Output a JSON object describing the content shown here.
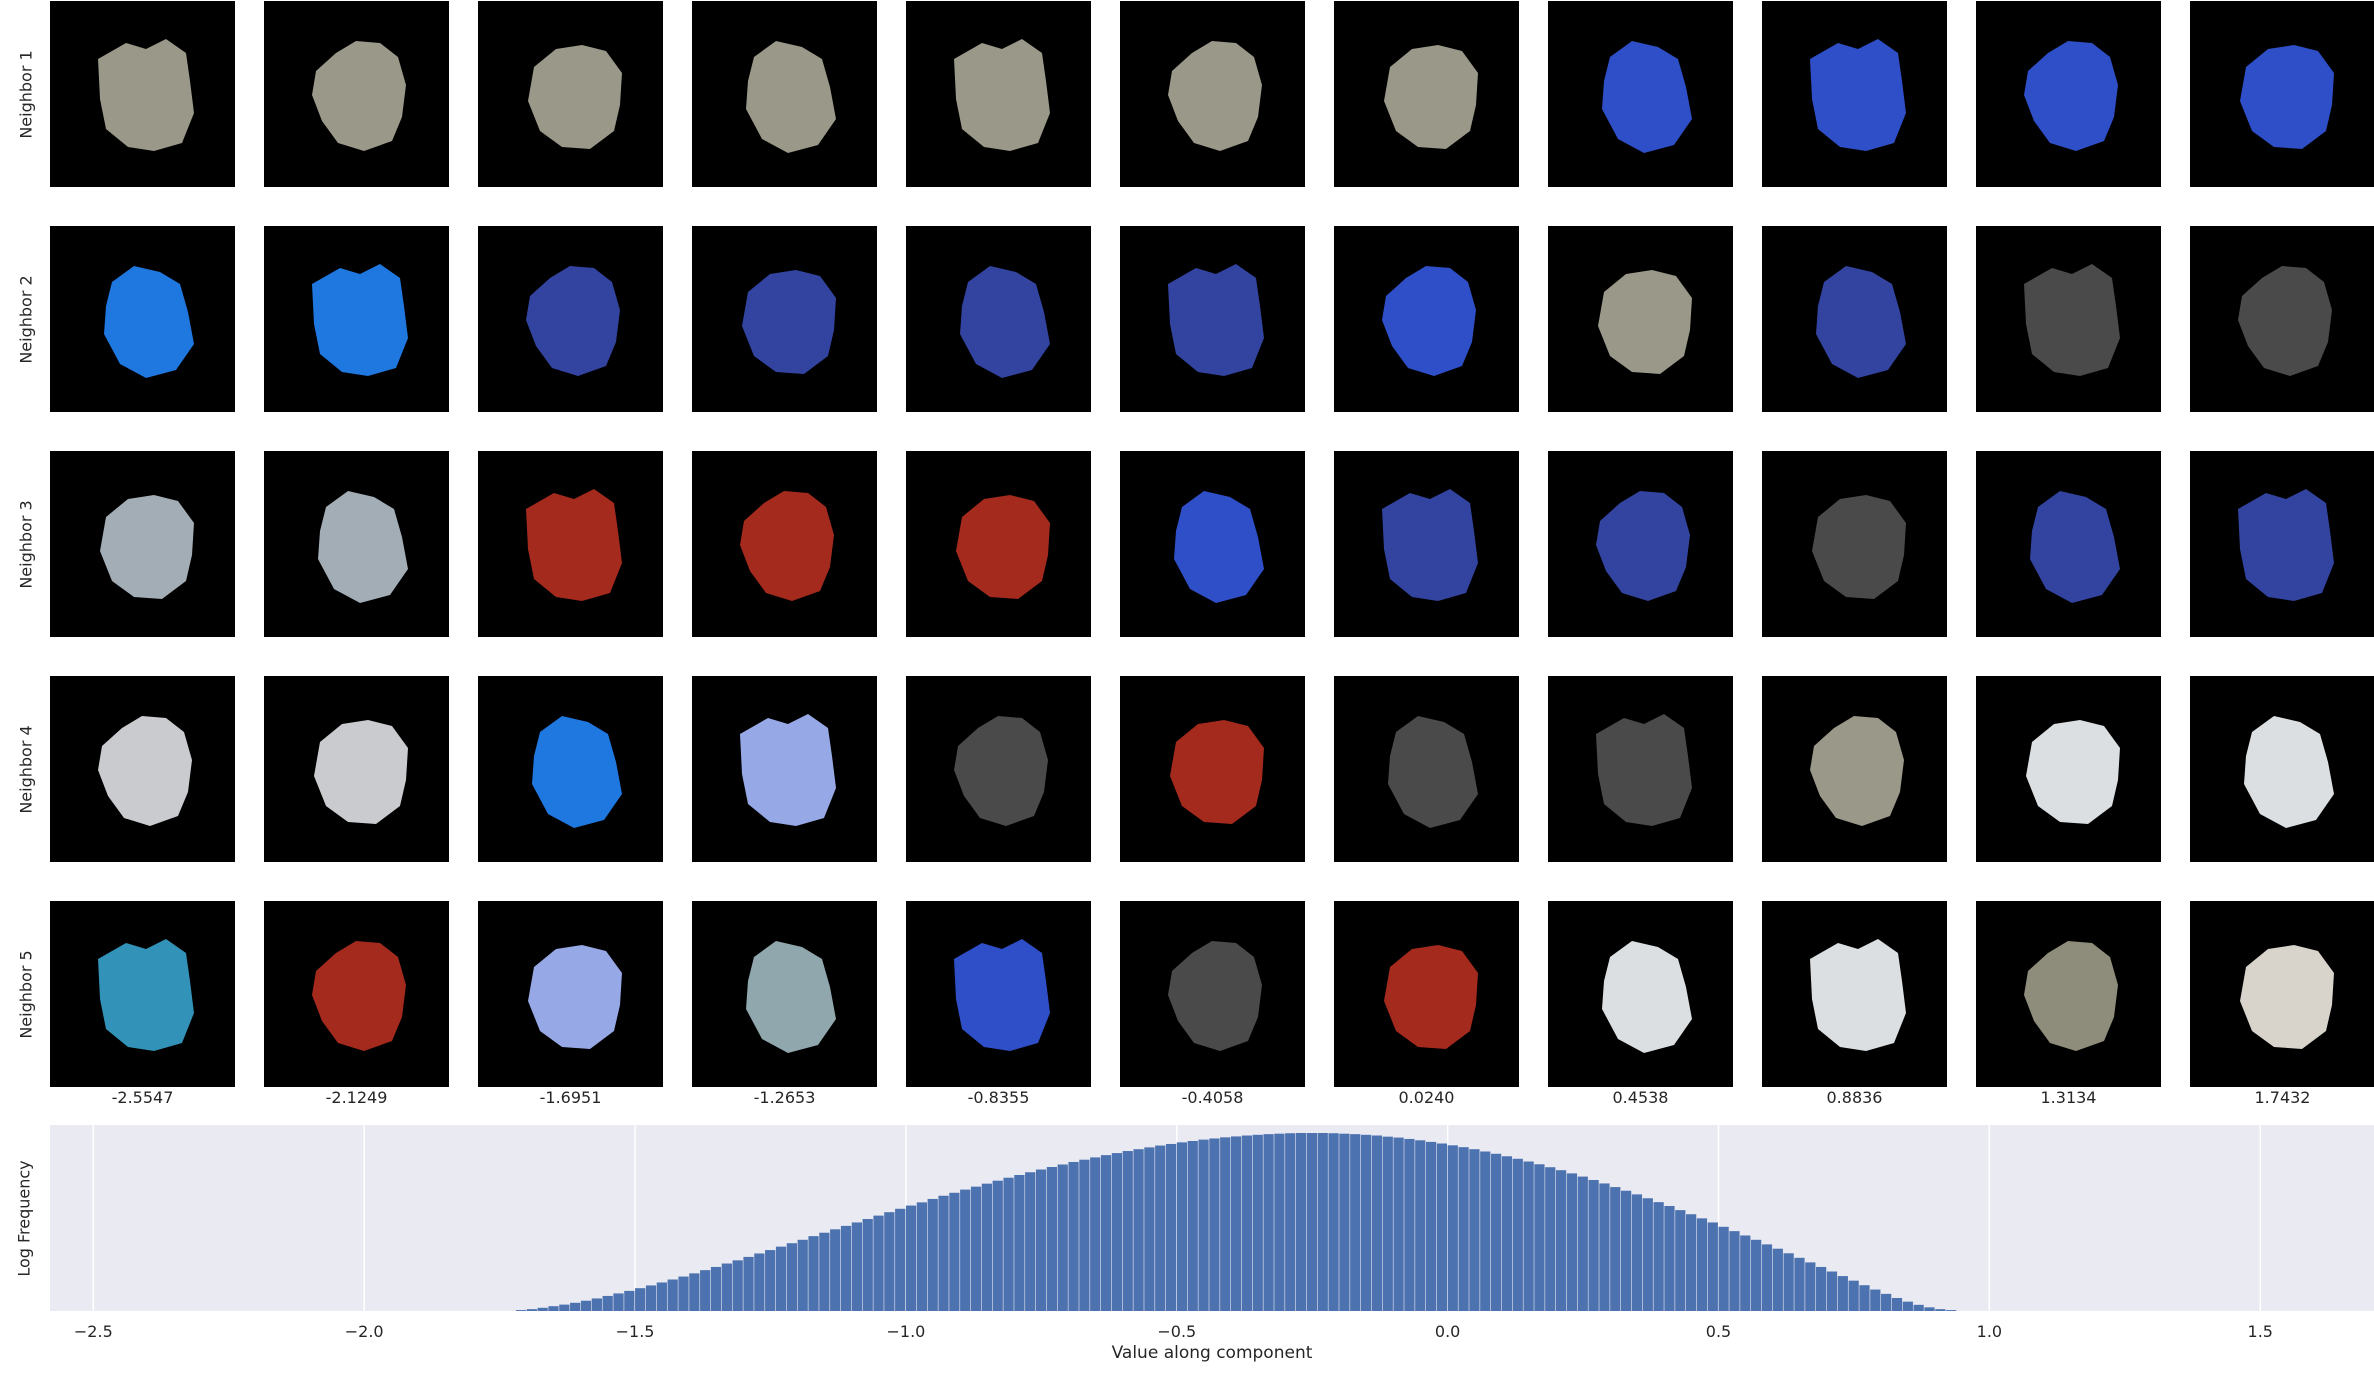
{
  "grid": {
    "row_labels": [
      "Neighbor 1",
      "Neighbor 2",
      "Neighbor 3",
      "Neighbor 4",
      "Neighbor 5"
    ],
    "column_values": [
      "-2.5547",
      "-2.1249",
      "-1.6951",
      "-1.2653",
      "-0.8355",
      "-0.4058",
      "0.0240",
      "0.4538",
      "0.8836",
      "1.3134",
      "1.7432"
    ],
    "tiles": [
      [
        "#9a9888",
        "#9a9888",
        "#9a9888",
        "#9a9888",
        "#9a9888",
        "#9a9888",
        "#9a9888",
        "#2f4fc8",
        "#2f4fc8",
        "#2f4fc8",
        "#2f4fc8"
      ],
      [
        "#1e78e0",
        "#1e78e0",
        "#3344a0",
        "#3344a0",
        "#3344a0",
        "#3344a0",
        "#2f4fc8",
        "#9a9888",
        "#3344a0",
        "#4a4a4a",
        "#4a4a4a"
      ],
      [
        "#a3adb6",
        "#a3adb6",
        "#a52a1e",
        "#a52a1e",
        "#a52a1e",
        "#2f4fc8",
        "#3344a0",
        "#3344a0",
        "#4a4a4a",
        "#3344a0",
        "#3344a0"
      ],
      [
        "#c9cbce",
        "#c9cbce",
        "#1e78e0",
        "#97a8e6",
        "#4a4a4a",
        "#a52a1e",
        "#4a4a4a",
        "#4a4a4a",
        "#9a9888",
        "#dcdfe1",
        "#dcdfe1"
      ],
      [
        "#3392b8",
        "#a52a1e",
        "#97a8e6",
        "#8fa7ad",
        "#2f4fc8",
        "#4a4a4a",
        "#a52a1e",
        "#dcdfe1",
        "#dcdfe1",
        "#8e8d7c",
        "#d8d4cc"
      ]
    ]
  },
  "chart_data": {
    "type": "bar",
    "ylabel": "Log Frequency",
    "xlabel": "Value along component",
    "xlim": [
      -2.58,
      1.71
    ],
    "xticks": [
      -2.5,
      -2.0,
      -1.5,
      -1.0,
      -0.5,
      0.0,
      0.5,
      1.0,
      1.5
    ],
    "xtick_labels": [
      "−2.5",
      "−2.0",
      "−1.5",
      "−1.0",
      "−0.5",
      "0.0",
      "0.5",
      "1.0",
      "1.5"
    ],
    "bin_start": -1.72,
    "bin_width": 0.02,
    "values": [
      0.004,
      0.008,
      0.014,
      0.021,
      0.028,
      0.036,
      0.045,
      0.055,
      0.066,
      0.077,
      0.088,
      0.1,
      0.112,
      0.125,
      0.138,
      0.151,
      0.165,
      0.179,
      0.193,
      0.208,
      0.222,
      0.237,
      0.252,
      0.267,
      0.282,
      0.297,
      0.312,
      0.328,
      0.343,
      0.358,
      0.373,
      0.388,
      0.403,
      0.418,
      0.433,
      0.448,
      0.462,
      0.476,
      0.491,
      0.505,
      0.518,
      0.532,
      0.545,
      0.558,
      0.571,
      0.584,
      0.596,
      0.608,
      0.62,
      0.631,
      0.642,
      0.653,
      0.663,
      0.673,
      0.683,
      0.692,
      0.701,
      0.709,
      0.717,
      0.725,
      0.732,
      0.739,
      0.745,
      0.751,
      0.756,
      0.761,
      0.765,
      0.769,
      0.772,
      0.775,
      0.777,
      0.779,
      0.78,
      0.78,
      0.78,
      0.779,
      0.777,
      0.775,
      0.772,
      0.769,
      0.764,
      0.76,
      0.754,
      0.748,
      0.741,
      0.734,
      0.726,
      0.718,
      0.709,
      0.699,
      0.689,
      0.678,
      0.667,
      0.655,
      0.643,
      0.63,
      0.617,
      0.603,
      0.589,
      0.574,
      0.559,
      0.543,
      0.527,
      0.511,
      0.494,
      0.477,
      0.46,
      0.442,
      0.424,
      0.406,
      0.388,
      0.369,
      0.35,
      0.331,
      0.312,
      0.292,
      0.273,
      0.253,
      0.233,
      0.213,
      0.193,
      0.173,
      0.153,
      0.133,
      0.113,
      0.094,
      0.075,
      0.057,
      0.041,
      0.027,
      0.016,
      0.008,
      0.004
    ],
    "grid": true
  }
}
